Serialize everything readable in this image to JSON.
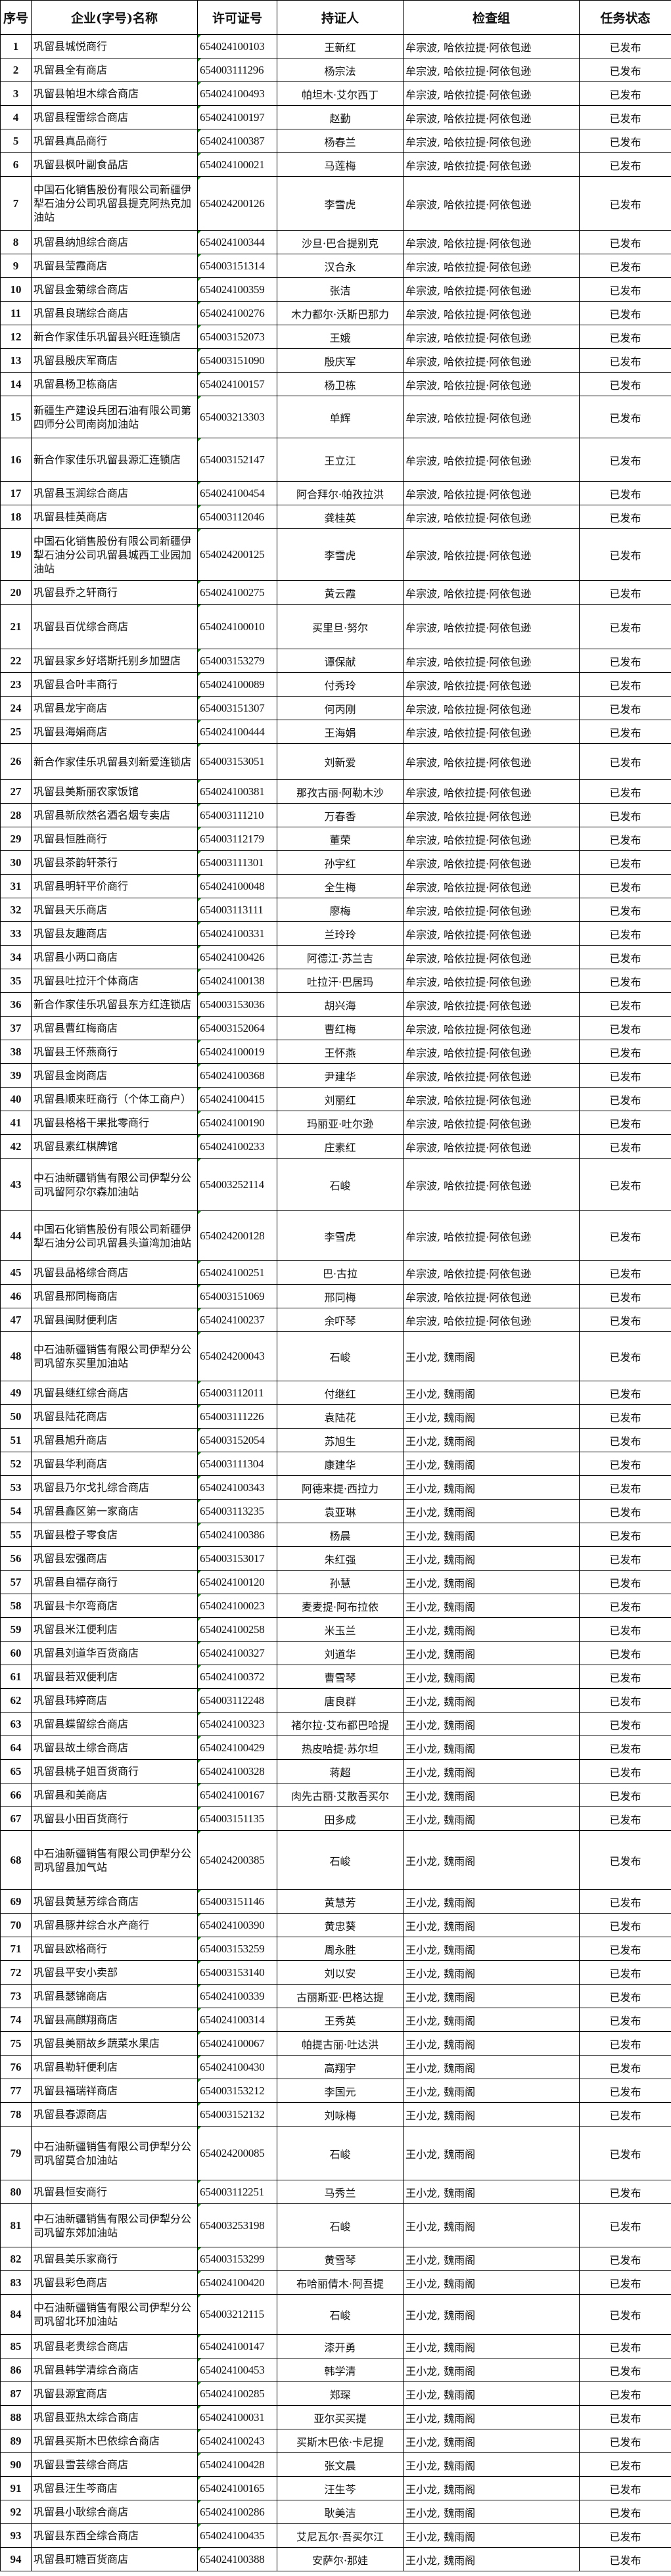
{
  "headers": [
    "序号",
    "企业(字号)名称",
    "许可证号",
    "持证人",
    "检查组",
    "任务状态"
  ],
  "rows": [
    [
      "1",
      "巩留县城悦商行",
      "654024100103",
      "王新红",
      "牟宗波, 哈依拉提·阿依包逊",
      "已发布"
    ],
    [
      "2",
      "巩留县全有商店",
      "654003111296",
      "杨宗法",
      "牟宗波, 哈依拉提·阿依包逊",
      "已发布"
    ],
    [
      "3",
      "巩留县帕坦木综合商店",
      "654024100493",
      "帕坦木·艾尔西丁",
      "牟宗波, 哈依拉提·阿依包逊",
      "已发布"
    ],
    [
      "4",
      "巩留县程雷综合商店",
      "654024100197",
      "赵勤",
      "牟宗波, 哈依拉提·阿依包逊",
      "已发布"
    ],
    [
      "5",
      "巩留县真品商行",
      "654024100387",
      "杨春兰",
      "牟宗波, 哈依拉提·阿依包逊",
      "已发布"
    ],
    [
      "6",
      "巩留县枫叶副食品店",
      "654024100021",
      "马莲梅",
      "牟宗波, 哈依拉提·阿依包逊",
      "已发布"
    ],
    [
      "7",
      "中国石化销售股份有限公司新疆伊犁石油分公司巩留县提克阿热克加油站",
      "654024200126",
      "李雪虎",
      "牟宗波, 哈依拉提·阿依包逊",
      "已发布"
    ],
    [
      "8",
      "巩留县纳旭综合商店",
      "654024100344",
      "沙旦·巴合提别克",
      "牟宗波, 哈依拉提·阿依包逊",
      "已发布"
    ],
    [
      "9",
      "巩留县莹霞商店",
      "654003151314",
      "汉合永",
      "牟宗波, 哈依拉提·阿依包逊",
      "已发布"
    ],
    [
      "10",
      "巩留县金菊综合商店",
      "654024100359",
      "张洁",
      "牟宗波, 哈依拉提·阿依包逊",
      "已发布"
    ],
    [
      "11",
      "巩留县良瑞综合商店",
      "654024100276",
      "木力都尔·沃斯巴那力",
      "牟宗波, 哈依拉提·阿依包逊",
      "已发布"
    ],
    [
      "12",
      "新合作家佳乐巩留县兴旺连锁店",
      "654003152073",
      "王娥",
      "牟宗波, 哈依拉提·阿依包逊",
      "已发布"
    ],
    [
      "13",
      "巩留县殷庆军商店",
      "654003151090",
      "殷庆军",
      "牟宗波, 哈依拉提·阿依包逊",
      "已发布"
    ],
    [
      "14",
      "巩留县杨卫栋商店",
      "654024100157",
      "杨卫栋",
      "牟宗波, 哈依拉提·阿依包逊",
      "已发布"
    ],
    [
      "15",
      "新疆生产建设兵团石油有限公司第四师分公司南岗加油站",
      "654003213303",
      "单辉",
      "牟宗波, 哈依拉提·阿依包逊",
      "已发布"
    ],
    [
      "16",
      "新合作家佳乐巩留县源汇连锁店",
      "654003152147",
      "王立江",
      "牟宗波, 哈依拉提·阿依包逊",
      "已发布"
    ],
    [
      "17",
      "巩留县玉润综合商店",
      "654024100454",
      "阿合拜尔·帕孜拉洪",
      "牟宗波, 哈依拉提·阿依包逊",
      "已发布"
    ],
    [
      "18",
      "巩留县桂英商店",
      "654003112046",
      "龚桂英",
      "牟宗波, 哈依拉提·阿依包逊",
      "已发布"
    ],
    [
      "19",
      "中国石化销售股份有限公司新疆伊犁石油分公司巩留县城西工业园加油站",
      "654024200125",
      "李雪虎",
      "牟宗波, 哈依拉提·阿依包逊",
      "已发布"
    ],
    [
      "20",
      "巩留县乔之轩商行",
      "654024100275",
      "黄云霞",
      "牟宗波, 哈依拉提·阿依包逊",
      "已发布"
    ],
    [
      "21",
      "巩留县百优综合商店",
      "654024100010",
      "买里旦·努尔",
      "牟宗波, 哈依拉提·阿依包逊",
      "已发布"
    ],
    [
      "22",
      "巩留县家乡好塔斯托别乡加盟店",
      "654003153279",
      "谭保献",
      "牟宗波, 哈依拉提·阿依包逊",
      "已发布"
    ],
    [
      "23",
      "巩留县合叶丰商行",
      "654024100089",
      "付秀玲",
      "牟宗波, 哈依拉提·阿依包逊",
      "已发布"
    ],
    [
      "24",
      "巩留县龙宇商店",
      "654003151307",
      "何丙刚",
      "牟宗波, 哈依拉提·阿依包逊",
      "已发布"
    ],
    [
      "25",
      "巩留县海娟商店",
      "654024100444",
      "王海娟",
      "牟宗波, 哈依拉提·阿依包逊",
      "已发布"
    ],
    [
      "26",
      "新合作家佳乐巩留县刘新爱连锁店",
      "654003153051",
      "刘新爱",
      "牟宗波, 哈依拉提·阿依包逊",
      "已发布"
    ],
    [
      "27",
      "巩留县美斯丽农家饭馆",
      "654024100381",
      "那孜古丽·阿勒木沙",
      "牟宗波, 哈依拉提·阿依包逊",
      "已发布"
    ],
    [
      "28",
      "巩留县新欣然名酒名烟专卖店",
      "654003111210",
      "万春香",
      "牟宗波, 哈依拉提·阿依包逊",
      "已发布"
    ],
    [
      "29",
      "巩留县恒胜商行",
      "654003112179",
      "董荣",
      "牟宗波, 哈依拉提·阿依包逊",
      "已发布"
    ],
    [
      "30",
      "巩留县茶韵轩茶行",
      "654003111301",
      "孙宇红",
      "牟宗波, 哈依拉提·阿依包逊",
      "已发布"
    ],
    [
      "31",
      "巩留县明轩平价商行",
      "654024100048",
      "全生梅",
      "牟宗波, 哈依拉提·阿依包逊",
      "已发布"
    ],
    [
      "32",
      "巩留县天乐商店",
      "654003113111",
      "廖梅",
      "牟宗波, 哈依拉提·阿依包逊",
      "已发布"
    ],
    [
      "33",
      "巩留县友趣商店",
      "654024100331",
      "兰玲玲",
      "牟宗波, 哈依拉提·阿依包逊",
      "已发布"
    ],
    [
      "34",
      "巩留县小两口商店",
      "654024100426",
      "阿德江·苏兰吉",
      "牟宗波, 哈依拉提·阿依包逊",
      "已发布"
    ],
    [
      "35",
      "巩留县吐拉汗个体商店",
      "654024100138",
      "吐拉汗·巴居玛",
      "牟宗波, 哈依拉提·阿依包逊",
      "已发布"
    ],
    [
      "36",
      "新合作家佳乐巩留县东方红连锁店",
      "654003153036",
      "胡兴海",
      "牟宗波, 哈依拉提·阿依包逊",
      "已发布"
    ],
    [
      "37",
      "巩留县曹红梅商店",
      "654003152064",
      "曹红梅",
      "牟宗波, 哈依拉提·阿依包逊",
      "已发布"
    ],
    [
      "38",
      "巩留县王怀燕商行",
      "654024100019",
      "王怀燕",
      "牟宗波, 哈依拉提·阿依包逊",
      "已发布"
    ],
    [
      "39",
      "巩留县金岗商店",
      "654024100368",
      "尹建华",
      "牟宗波, 哈依拉提·阿依包逊",
      "已发布"
    ],
    [
      "40",
      "巩留县顺来旺商行（个体工商户）",
      "654024100415",
      "刘丽红",
      "牟宗波, 哈依拉提·阿依包逊",
      "已发布"
    ],
    [
      "41",
      "巩留县格格干果批零商行",
      "654024100190",
      "玛丽亚·吐尔逊",
      "牟宗波, 哈依拉提·阿依包逊",
      "已发布"
    ],
    [
      "42",
      "巩留县素红棋牌馆",
      "654024100233",
      "庄素红",
      "牟宗波, 哈依拉提·阿依包逊",
      "已发布"
    ],
    [
      "43",
      "中石油新疆销售有限公司伊犁分公司巩留阿尕尔森加油站",
      "654003252114",
      "石峻",
      "牟宗波, 哈依拉提·阿依包逊",
      "已发布"
    ],
    [
      "44",
      "中国石化销售股份有限公司新疆伊犁石油分公司巩留县头道湾加油站",
      "654024200128",
      "李雪虎",
      "牟宗波, 哈依拉提·阿依包逊",
      "已发布"
    ],
    [
      "45",
      "巩留县品格综合商店",
      "654024100251",
      "巴·古拉",
      "牟宗波, 哈依拉提·阿依包逊",
      "已发布"
    ],
    [
      "46",
      "巩留县邢同梅商店",
      "654003151069",
      "邢同梅",
      "牟宗波, 哈依拉提·阿依包逊",
      "已发布"
    ],
    [
      "47",
      "巩留县闽财便利店",
      "654024100237",
      "余吓琴",
      "牟宗波, 哈依拉提·阿依包逊",
      "已发布"
    ],
    [
      "48",
      "中石油新疆销售有限公司伊犁分公司巩留东买里加油站",
      "654024200043",
      "石峻",
      "王小龙, 魏雨阁",
      "已发布"
    ],
    [
      "49",
      "巩留县继红综合商店",
      "654003112011",
      "付继红",
      "王小龙, 魏雨阁",
      "已发布"
    ],
    [
      "50",
      "巩留县陆花商店",
      "654003111226",
      "袁陆花",
      "王小龙, 魏雨阁",
      "已发布"
    ],
    [
      "51",
      "巩留县旭升商店",
      "654003152054",
      "苏旭生",
      "王小龙, 魏雨阁",
      "已发布"
    ],
    [
      "52",
      "巩留县华利商店",
      "654003111304",
      "康建华",
      "王小龙, 魏雨阁",
      "已发布"
    ],
    [
      "53",
      "巩留县乃尔戈扎综合商店",
      "654024100343",
      "阿德来提·西拉力",
      "王小龙, 魏雨阁",
      "已发布"
    ],
    [
      "54",
      "巩留县鑫区第一家商店",
      "654003113235",
      "袁亚琳",
      "王小龙, 魏雨阁",
      "已发布"
    ],
    [
      "55",
      "巩留县橙子零食店",
      "654024100386",
      "杨晨",
      "王小龙, 魏雨阁",
      "已发布"
    ],
    [
      "56",
      "巩留县宏强商店",
      "654003153017",
      "朱红强",
      "王小龙, 魏雨阁",
      "已发布"
    ],
    [
      "57",
      "巩留县自福存商行",
      "654024100120",
      "孙慧",
      "王小龙, 魏雨阁",
      "已发布"
    ],
    [
      "58",
      "巩留县卡尔弯商店",
      "654024100023",
      "麦麦提·阿布拉依",
      "王小龙, 魏雨阁",
      "已发布"
    ],
    [
      "59",
      "巩留县米江便利店",
      "654024100258",
      "米玉兰",
      "王小龙, 魏雨阁",
      "已发布"
    ],
    [
      "60",
      "巩留县刘道华百货商店",
      "654024100327",
      "刘道华",
      "王小龙, 魏雨阁",
      "已发布"
    ],
    [
      "61",
      "巩留县若双便利店",
      "654024100372",
      "曹雪琴",
      "王小龙, 魏雨阁",
      "已发布"
    ],
    [
      "62",
      "巩留县玮婷商店",
      "654003112248",
      "唐良群",
      "王小龙, 魏雨阁",
      "已发布"
    ],
    [
      "63",
      "巩留县蝶留综合商店",
      "654024100323",
      "褚尔拉·艾布都巴哈提",
      "王小龙, 魏雨阁",
      "已发布"
    ],
    [
      "64",
      "巩留县故土综合商店",
      "654024100429",
      "热皮哈提·苏尔坦",
      "王小龙, 魏雨阁",
      "已发布"
    ],
    [
      "65",
      "巩留县桃子姐百货商行",
      "654024100328",
      "蒋超",
      "王小龙, 魏雨阁",
      "已发布"
    ],
    [
      "66",
      "巩留县和美商店",
      "654024100167",
      "肉先古丽·艾散吾买尔",
      "王小龙, 魏雨阁",
      "已发布"
    ],
    [
      "67",
      "巩留县小田百货商行",
      "654003151135",
      "田多成",
      "王小龙, 魏雨阁",
      "已发布"
    ],
    [
      "68",
      "中石油新疆销售有限公司伊犁分公司巩留县加气站",
      "654024200385",
      "石峻",
      "王小龙, 魏雨阁",
      "已发布"
    ],
    [
      "69",
      "巩留县黄慧芳综合商店",
      "654003151146",
      "黄慧芳",
      "王小龙, 魏雨阁",
      "已发布"
    ],
    [
      "70",
      "巩留县豚井综合水产商行",
      "654024100390",
      "黄忠葵",
      "王小龙, 魏雨阁",
      "已发布"
    ],
    [
      "71",
      "巩留县欧格商行",
      "654003153259",
      "周永胜",
      "王小龙, 魏雨阁",
      "已发布"
    ],
    [
      "72",
      "巩留县平安小卖部",
      "654003153140",
      "刘以安",
      "王小龙, 魏雨阁",
      "已发布"
    ],
    [
      "73",
      "巩留县瑟锦商店",
      "654024100339",
      "古丽斯亚·巴格达提",
      "王小龙, 魏雨阁",
      "已发布"
    ],
    [
      "74",
      "巩留县高麒翔商店",
      "654024100314",
      "王秀英",
      "王小龙, 魏雨阁",
      "已发布"
    ],
    [
      "75",
      "巩留县美丽故乡蔬菜水果店",
      "654024100067",
      "帕提古丽·吐达洪",
      "王小龙, 魏雨阁",
      "已发布"
    ],
    [
      "76",
      "巩留县勒轩便利店",
      "654024100430",
      "高翔宇",
      "王小龙, 魏雨阁",
      "已发布"
    ],
    [
      "77",
      "巩留县福瑞祥商店",
      "654003153212",
      "李国元",
      "王小龙, 魏雨阁",
      "已发布"
    ],
    [
      "78",
      "巩留县春源商店",
      "654003152132",
      "刘咏梅",
      "王小龙, 魏雨阁",
      "已发布"
    ],
    [
      "79",
      "中石油新疆销售有限公司伊犁分公司巩留莫合加油站",
      "654024200085",
      "石峻",
      "王小龙, 魏雨阁",
      "已发布"
    ],
    [
      "80",
      "巩留县恒安商行",
      "654003112251",
      "马秀兰",
      "王小龙, 魏雨阁",
      "已发布"
    ],
    [
      "81",
      "中石油新疆销售有限公司伊犁分公司巩留东郊加油站",
      "654003253198",
      "石峻",
      "王小龙, 魏雨阁",
      "已发布"
    ],
    [
      "82",
      "巩留县美乐家商行",
      "654003153299",
      "黄雪琴",
      "王小龙, 魏雨阁",
      "已发布"
    ],
    [
      "83",
      "巩留县彩色商店",
      "654024100420",
      "布哈丽倩木·阿吾提",
      "王小龙, 魏雨阁",
      "已发布"
    ],
    [
      "84",
      "中石油新疆销售有限公司伊犁分公司巩留北环加油站",
      "654003212115",
      "石峻",
      "王小龙, 魏雨阁",
      "已发布"
    ],
    [
      "85",
      "巩留县老贵综合商店",
      "654024100147",
      "漆开勇",
      "王小龙, 魏雨阁",
      "已发布"
    ],
    [
      "86",
      "巩留县韩学清综合商店",
      "654024100453",
      "韩学清",
      "王小龙, 魏雨阁",
      "已发布"
    ],
    [
      "87",
      "巩留县源宜商店",
      "654024100285",
      "郑琛",
      "王小龙, 魏雨阁",
      "已发布"
    ],
    [
      "88",
      "巩留县亚热太综合商店",
      "654024100031",
      "亚尔买买提",
      "王小龙, 魏雨阁",
      "已发布"
    ],
    [
      "89",
      "巩留县买斯木巴依综合商店",
      "654024100243",
      "买斯木巴依·卡尼提",
      "王小龙, 魏雨阁",
      "已发布"
    ],
    [
      "90",
      "巩留县雪芸综合商店",
      "654024100428",
      "张文晨",
      "王小龙, 魏雨阁",
      "已发布"
    ],
    [
      "91",
      "巩留县汪生芩商店",
      "654024100165",
      "汪生芩",
      "王小龙, 魏雨阁",
      "已发布"
    ],
    [
      "92",
      "巩留县小耿综合商店",
      "654024100286",
      "耿美洁",
      "王小龙, 魏雨阁",
      "已发布"
    ],
    [
      "93",
      "巩留县东西全综合商店",
      "654024100435",
      "艾尼瓦尔·吾买尔江",
      "王小龙, 魏雨阁",
      "已发布"
    ],
    [
      "94",
      "巩留县町糖百货商店",
      "654024100388",
      "安萨尔·那娃",
      "王小龙, 魏雨阁",
      "已发布"
    ]
  ]
}
